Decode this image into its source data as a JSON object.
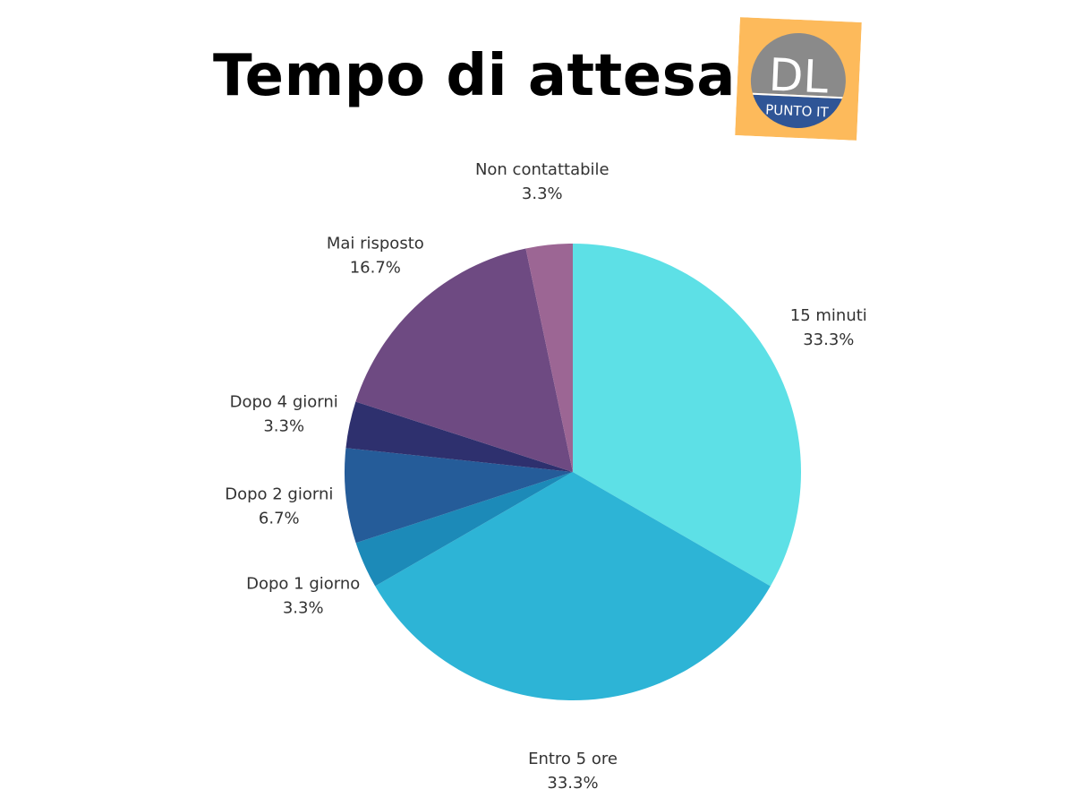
{
  "title": "Tempo di attesa",
  "logo": {
    "text_main": "DL",
    "text_sub": "PUNTO IT",
    "colors": {
      "background": "#FDBA5B",
      "circle_top": "#8A8A8A",
      "circle_bottom": "#2F5596",
      "text": "#FFFFFF"
    }
  },
  "chart_data": {
    "type": "pie",
    "title": "Tempo di attesa",
    "start": "12 o'clock",
    "direction": "clockwise",
    "legend": "none",
    "slices": [
      {
        "label": "15 minuti",
        "value": 33.3,
        "value_label": "33.3%",
        "color": "#5DE0E6"
      },
      {
        "label": "Entro 5 ore",
        "value": 33.3,
        "value_label": "33.3%",
        "color": "#2DB4D6"
      },
      {
        "label": "Dopo 1 giorno",
        "value": 3.3,
        "value_label": "3.3%",
        "color": "#1C8AB8"
      },
      {
        "label": "Dopo 2 giorni",
        "value": 6.7,
        "value_label": "6.7%",
        "color": "#255C99"
      },
      {
        "label": "Dopo 4 giorni",
        "value": 3.3,
        "value_label": "3.3%",
        "color": "#2E306E"
      },
      {
        "label": "Mai risposto",
        "value": 16.7,
        "value_label": "16.7%",
        "color": "#6E4A82"
      },
      {
        "label": "Non contattabile",
        "value": 3.3,
        "value_label": "3.3%",
        "color": "#9C6694"
      }
    ]
  }
}
